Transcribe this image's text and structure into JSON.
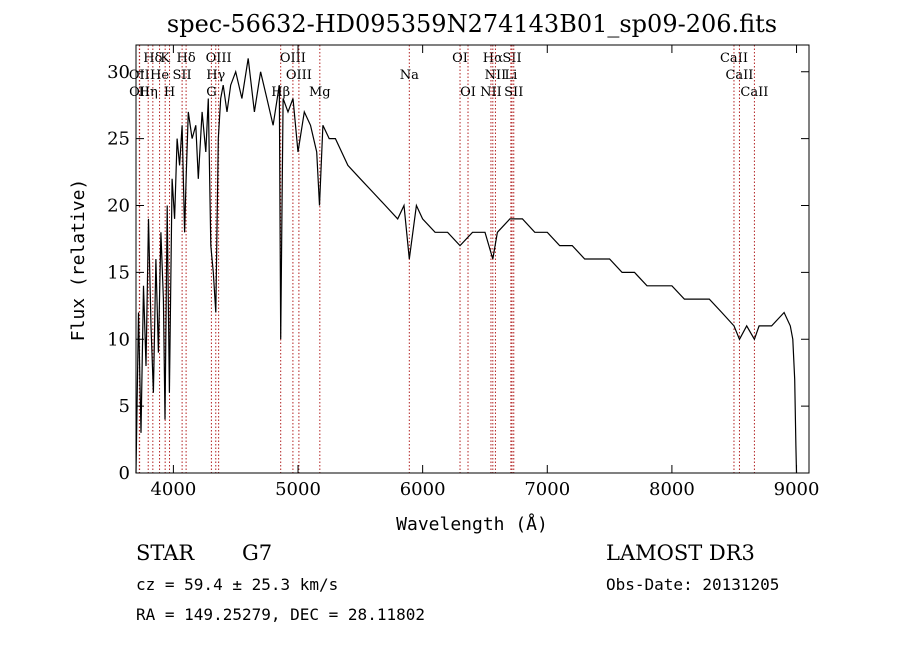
{
  "chart_data": {
    "type": "line",
    "title": "spec-56632-HD095359N274143B01_sp09-206.fits",
    "xlabel": "Wavelength (Å)",
    "ylabel": "Flux (relative)",
    "xlim": [
      3700,
      9100
    ],
    "ylim": [
      0,
      32
    ],
    "x_ticks": [
      4000,
      5000,
      6000,
      7000,
      8000,
      9000
    ],
    "y_ticks": [
      0,
      5,
      10,
      15,
      20,
      25,
      30
    ],
    "grid": false,
    "line_color": "#000000",
    "marker_color": "#b22222",
    "series": [
      {
        "x": [
          3700,
          3720,
          3740,
          3760,
          3780,
          3800,
          3820,
          3840,
          3860,
          3880,
          3900,
          3920,
          3933,
          3950,
          3968,
          3990,
          4010,
          4030,
          4050,
          4070,
          4090,
          4102,
          4120,
          4150,
          4180,
          4200,
          4230,
          4260,
          4280,
          4300,
          4320,
          4340,
          4360,
          4380,
          4400,
          4430,
          4460,
          4500,
          4550,
          4600,
          4650,
          4700,
          4750,
          4800,
          4850,
          4861,
          4880,
          4920,
          4960,
          5000,
          5050,
          5100,
          5150,
          5172,
          5200,
          5250,
          5300,
          5400,
          5500,
          5600,
          5700,
          5800,
          5850,
          5893,
          5950,
          6000,
          6100,
          6200,
          6300,
          6400,
          6500,
          6563,
          6600,
          6700,
          6800,
          6900,
          7000,
          7100,
          7200,
          7300,
          7400,
          7500,
          7600,
          7700,
          7800,
          7900,
          8000,
          8100,
          8200,
          8300,
          8400,
          8498,
          8542,
          8600,
          8662,
          8700,
          8800,
          8900,
          8950,
          8970,
          8985,
          8995,
          9000
        ],
        "y": [
          0,
          12,
          3,
          14,
          8,
          19,
          11,
          6,
          16,
          9,
          18,
          13,
          4,
          20,
          6,
          22,
          19,
          25,
          23,
          26,
          18,
          22,
          27,
          25,
          26,
          22,
          27,
          24,
          28,
          17,
          15,
          12,
          25,
          28,
          29,
          27,
          29,
          30,
          28,
          31,
          27,
          30,
          28,
          26,
          29,
          10,
          28,
          27,
          28,
          24,
          27,
          26,
          24,
          20,
          26,
          25,
          25,
          23,
          22,
          21,
          20,
          19,
          20,
          16,
          20,
          19,
          18,
          18,
          17,
          18,
          18,
          16,
          18,
          19,
          19,
          18,
          18,
          17,
          17,
          16,
          16,
          16,
          15,
          15,
          14,
          14,
          14,
          13,
          13,
          13,
          12,
          11,
          10,
          11,
          10,
          11,
          11,
          12,
          11,
          10,
          7,
          2,
          0
        ]
      }
    ],
    "spectral_lines": [
      {
        "label": "Hδ",
        "x": 3835,
        "row": 0
      },
      {
        "label": "K",
        "x": 3934,
        "row": 0
      },
      {
        "label": "Hδ",
        "x": 4102,
        "row": 0
      },
      {
        "label": "OIII",
        "x": 4363,
        "row": 0
      },
      {
        "label": "OIII",
        "x": 4959,
        "row": 0
      },
      {
        "label": "OI",
        "x": 6300,
        "row": 0
      },
      {
        "label": "Hα",
        "x": 6563,
        "row": 0
      },
      {
        "label": "SII",
        "x": 6717,
        "row": 0
      },
      {
        "label": "CaII",
        "x": 8498,
        "row": 0
      },
      {
        "label": "OII",
        "x": 3727,
        "row": 1
      },
      {
        "label": "He",
        "x": 3889,
        "row": 1
      },
      {
        "label": "SII",
        "x": 4070,
        "row": 1
      },
      {
        "label": "Hγ",
        "x": 4340,
        "row": 1
      },
      {
        "label": "OIII",
        "x": 5007,
        "row": 1
      },
      {
        "label": "Na",
        "x": 5893,
        "row": 1
      },
      {
        "label": "NII",
        "x": 6584,
        "row": 1
      },
      {
        "label": "Li",
        "x": 6708,
        "row": 1
      },
      {
        "label": "CaII",
        "x": 8542,
        "row": 1
      },
      {
        "label": "OII",
        "x": 3729,
        "row": 2
      },
      {
        "label": "Hη",
        "x": 3798,
        "row": 2
      },
      {
        "label": "H",
        "x": 3969,
        "row": 2
      },
      {
        "label": "G",
        "x": 4305,
        "row": 2
      },
      {
        "label": "Hβ",
        "x": 4861,
        "row": 2
      },
      {
        "label": "Mg",
        "x": 5175,
        "row": 2
      },
      {
        "label": "OI",
        "x": 6364,
        "row": 2
      },
      {
        "label": "NII",
        "x": 6548,
        "row": 2
      },
      {
        "label": "SII",
        "x": 6731,
        "row": 2
      },
      {
        "label": "CaII",
        "x": 8662,
        "row": 2
      }
    ]
  },
  "info": {
    "class_label": "STAR",
    "subclass": "G7",
    "survey": "LAMOST DR3",
    "cz": "cz = 59.4 ± 25.3 km/s",
    "obs_date": "Obs-Date: 20131205",
    "coords": "RA = 149.25279, DEC =  28.11802"
  }
}
